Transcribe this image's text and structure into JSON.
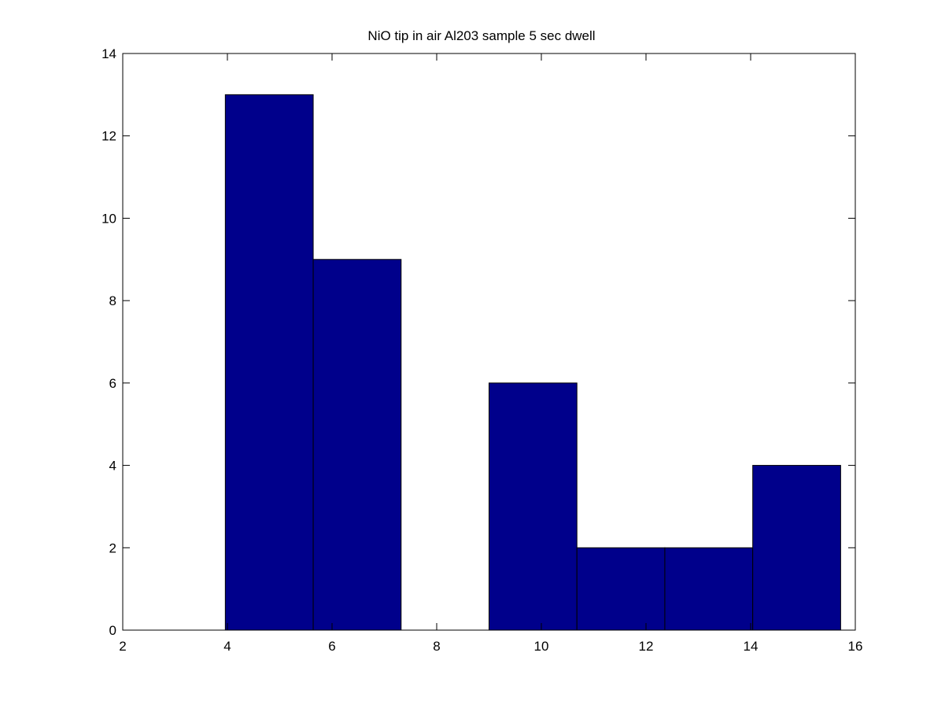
{
  "chart_data": {
    "type": "bar",
    "title": "NiO tip in air Al203 sample 5 sec dwell",
    "xlabel": "",
    "ylabel": "",
    "xlim": [
      2,
      16
    ],
    "ylim": [
      0,
      14
    ],
    "xticks": [
      2,
      4,
      6,
      8,
      10,
      12,
      14,
      16
    ],
    "yticks": [
      0,
      2,
      4,
      6,
      8,
      10,
      12,
      14
    ],
    "bins": [
      {
        "x0": 3.96,
        "x1": 5.64,
        "value": 13
      },
      {
        "x0": 5.64,
        "x1": 7.32,
        "value": 9
      },
      {
        "x0": 7.32,
        "x1": 9.0,
        "value": 0
      },
      {
        "x0": 9.0,
        "x1": 10.68,
        "value": 6
      },
      {
        "x0": 10.68,
        "x1": 12.36,
        "value": 2
      },
      {
        "x0": 12.36,
        "x1": 14.04,
        "value": 2
      },
      {
        "x0": 14.04,
        "x1": 15.72,
        "value": 4
      }
    ],
    "bar_color": "#00008b",
    "bar_edge_color": "#000000",
    "grid": false,
    "legend": "none"
  }
}
